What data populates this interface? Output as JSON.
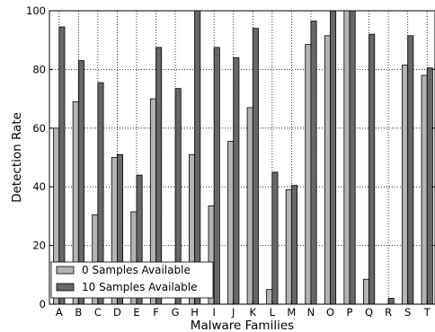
{
  "chart_data": {
    "type": "bar",
    "title": "",
    "xlabel": "Malware Families",
    "ylabel": "Detection Rate",
    "ylim": [
      0,
      100
    ],
    "yticks": [
      0,
      20,
      40,
      60,
      80,
      100
    ],
    "grid": true,
    "legend_position": "bottom-left",
    "categories": [
      "A",
      "B",
      "C",
      "D",
      "E",
      "F",
      "G",
      "H",
      "I",
      "J",
      "K",
      "L",
      "M",
      "N",
      "O",
      "P",
      "Q",
      "R",
      "S",
      "T"
    ],
    "series": [
      {
        "name": "0 Samples Available",
        "color": "#b3b3b3",
        "values": [
          60,
          69,
          30.5,
          50,
          31.5,
          70,
          0,
          51,
          33.5,
          55.5,
          67,
          5,
          39,
          88.5,
          91.5,
          100,
          8.5,
          0,
          81.5,
          78
        ]
      },
      {
        "name": "10 Samples Available",
        "color": "#666666",
        "values": [
          94.5,
          83,
          75.5,
          51,
          44,
          87.5,
          73.5,
          100,
          87.5,
          84,
          94,
          45,
          40.5,
          96.5,
          100,
          100,
          92,
          2,
          91.5,
          80.5
        ]
      }
    ]
  }
}
